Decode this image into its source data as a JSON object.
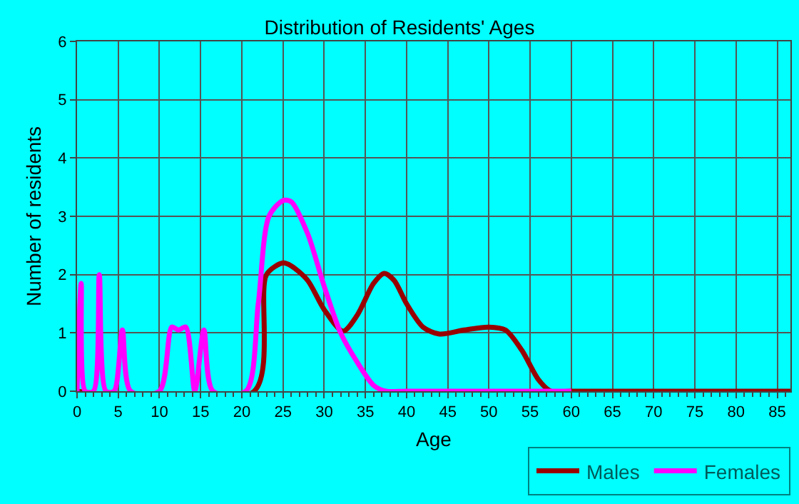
{
  "chart_data": {
    "type": "line",
    "title": "Distribution of Residents' Ages",
    "xlabel": "Age",
    "ylabel": "Number of residents",
    "xlim": [
      0,
      86.6
    ],
    "xticks": [
      0,
      5,
      10,
      15,
      20,
      25,
      30,
      35,
      40,
      45,
      50,
      55,
      60,
      65,
      70,
      75,
      80,
      85
    ],
    "ylim": [
      0,
      6
    ],
    "yticks": [
      0,
      1,
      2,
      3,
      4,
      5,
      6
    ],
    "grid": true,
    "legend": "bottom right",
    "line_style": "solid",
    "marker": "none",
    "series": [
      {
        "name": "Males",
        "color": "#990000",
        "x": [
          0,
          21.5,
          23,
          25,
          26,
          28,
          30,
          32.3,
          34,
          36,
          37.3,
          38.5,
          40,
          42,
          44,
          47,
          50,
          52,
          54,
          56,
          57.5,
          60,
          86.6
        ],
        "values": [
          0,
          0,
          2.0,
          2.2,
          2.15,
          1.9,
          1.4,
          1.03,
          1.3,
          1.85,
          2.02,
          1.9,
          1.5,
          1.1,
          0.98,
          1.05,
          1.1,
          1.05,
          0.7,
          0.2,
          0,
          0,
          0
        ]
      },
      {
        "name": "Females",
        "color": "#ff00ff",
        "x": [
          0,
          0.5,
          1,
          2,
          2.7,
          3.5,
          4.5,
          5.5,
          6.5,
          10,
          11.5,
          12.3,
          13.2,
          14.3,
          15.4,
          16.5,
          20.5,
          22,
          23.3,
          25,
          26,
          28,
          30,
          32,
          34,
          36,
          37.5,
          40,
          60
        ],
        "values": [
          0,
          1.85,
          0,
          0,
          2,
          0,
          0,
          1.05,
          0,
          0,
          1.1,
          1.05,
          1.1,
          0,
          1.05,
          0,
          0,
          1.5,
          3.0,
          3.27,
          3.25,
          2.7,
          1.8,
          1.0,
          0.5,
          0.1,
          0,
          0,
          0
        ]
      }
    ]
  }
}
